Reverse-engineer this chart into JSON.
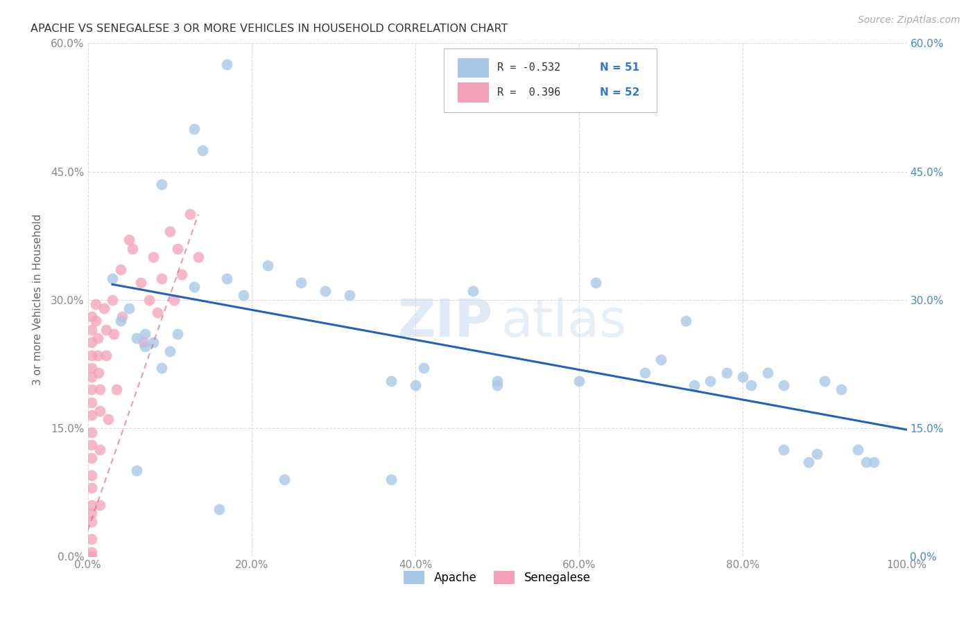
{
  "title": "APACHE VS SENEGALESE 3 OR MORE VEHICLES IN HOUSEHOLD CORRELATION CHART",
  "source": "Source: ZipAtlas.com",
  "ylabel": "3 or more Vehicles in Household",
  "xlabel": "",
  "xlim": [
    0.0,
    1.0
  ],
  "ylim": [
    0.0,
    0.6
  ],
  "xtick_labels": [
    "0.0%",
    "20.0%",
    "40.0%",
    "60.0%",
    "80.0%",
    "100.0%"
  ],
  "ytick_labels": [
    "0.0%",
    "15.0%",
    "30.0%",
    "45.0%",
    "60.0%"
  ],
  "ytick_vals": [
    0.0,
    0.15,
    0.3,
    0.45,
    0.6
  ],
  "xtick_vals": [
    0.0,
    0.2,
    0.4,
    0.6,
    0.8,
    1.0
  ],
  "apache_color": "#a8c8e8",
  "senegalese_color": "#f4a0b8",
  "apache_line_color": "#2060c0",
  "senegalese_line_color": "#e06080",
  "apache_R": "-0.532",
  "apache_N": "51",
  "senegalese_R": "0.396",
  "senegalese_N": "52",
  "watermark_zip": "ZIP",
  "watermark_atlas": "atlas",
  "apache_scatter_x": [
    0.17,
    0.09,
    0.13,
    0.14,
    0.03,
    0.04,
    0.05,
    0.06,
    0.07,
    0.07,
    0.08,
    0.1,
    0.13,
    0.17,
    0.19,
    0.22,
    0.26,
    0.29,
    0.32,
    0.37,
    0.4,
    0.41,
    0.47,
    0.5,
    0.6,
    0.68,
    0.7,
    0.74,
    0.76,
    0.78,
    0.8,
    0.81,
    0.83,
    0.85,
    0.88,
    0.9,
    0.92,
    0.94,
    0.96,
    0.06,
    0.09,
    0.11,
    0.24,
    0.37,
    0.5,
    0.62,
    0.73,
    0.85,
    0.89,
    0.95,
    0.16
  ],
  "apache_scatter_y": [
    0.575,
    0.435,
    0.5,
    0.475,
    0.325,
    0.275,
    0.29,
    0.255,
    0.26,
    0.245,
    0.25,
    0.24,
    0.315,
    0.325,
    0.305,
    0.34,
    0.32,
    0.31,
    0.305,
    0.205,
    0.2,
    0.22,
    0.31,
    0.205,
    0.205,
    0.215,
    0.23,
    0.2,
    0.205,
    0.215,
    0.21,
    0.2,
    0.215,
    0.125,
    0.11,
    0.205,
    0.195,
    0.125,
    0.11,
    0.1,
    0.22,
    0.26,
    0.09,
    0.09,
    0.2,
    0.32,
    0.275,
    0.2,
    0.12,
    0.11,
    0.055
  ],
  "senegalese_scatter_x": [
    0.005,
    0.005,
    0.005,
    0.005,
    0.005,
    0.005,
    0.005,
    0.005,
    0.005,
    0.005,
    0.005,
    0.005,
    0.005,
    0.005,
    0.005,
    0.005,
    0.005,
    0.005,
    0.01,
    0.01,
    0.012,
    0.012,
    0.013,
    0.015,
    0.015,
    0.015,
    0.015,
    0.02,
    0.022,
    0.022,
    0.025,
    0.03,
    0.032,
    0.035,
    0.04,
    0.042,
    0.05,
    0.055,
    0.065,
    0.068,
    0.075,
    0.08,
    0.085,
    0.09,
    0.1,
    0.105,
    0.11,
    0.115,
    0.125,
    0.135,
    0.005,
    0.005
  ],
  "senegalese_scatter_y": [
    0.28,
    0.265,
    0.25,
    0.235,
    0.22,
    0.21,
    0.195,
    0.18,
    0.165,
    0.145,
    0.13,
    0.115,
    0.095,
    0.08,
    0.06,
    0.04,
    0.02,
    0.005,
    0.295,
    0.275,
    0.255,
    0.235,
    0.215,
    0.195,
    0.17,
    0.125,
    0.06,
    0.29,
    0.265,
    0.235,
    0.16,
    0.3,
    0.26,
    0.195,
    0.335,
    0.28,
    0.37,
    0.36,
    0.32,
    0.25,
    0.3,
    0.35,
    0.285,
    0.325,
    0.38,
    0.3,
    0.36,
    0.33,
    0.4,
    0.35,
    0.0,
    0.05
  ],
  "apache_trendline_x": [
    0.03,
    1.0
  ],
  "apache_trendline_y": [
    0.318,
    0.148
  ],
  "senegalese_trendline_x": [
    0.0,
    0.135
  ],
  "senegalese_trendline_y": [
    0.03,
    0.4
  ],
  "grid_color": "#cccccc",
  "background_color": "#ffffff"
}
